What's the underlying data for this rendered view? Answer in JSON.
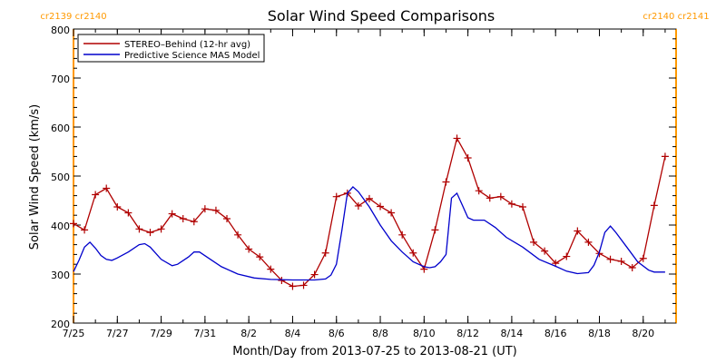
{
  "chart_data": {
    "type": "line",
    "title": "Solar Wind Speed Comparisons",
    "xlabel": "Month/Day from 2013-07-25 to 2013-08-21 (UT)",
    "ylabel": "Solar Wind Speed (km/s)",
    "xlim": [
      "2013-07-25",
      "2013-08-21 12:00"
    ],
    "ylim": [
      200,
      800
    ],
    "xtick_dates": [
      "2013-07-25",
      "2013-07-27",
      "2013-07-29",
      "2013-07-31",
      "2013-08-02",
      "2013-08-04",
      "2013-08-06",
      "2013-08-08",
      "2013-08-10",
      "2013-08-12",
      "2013-08-14",
      "2013-08-16",
      "2013-08-18",
      "2013-08-20"
    ],
    "x_tick_labels": [
      "7/25",
      "7/27",
      "7/29",
      "7/31",
      "8/2",
      "8/4",
      "8/6",
      "8/8",
      "8/10",
      "8/12",
      "8/14",
      "8/16",
      "8/18",
      "8/20"
    ],
    "y_ticks": [
      200,
      300,
      400,
      500,
      600,
      700,
      800
    ],
    "y_tick_labels": [
      "200",
      "300",
      "400",
      "500",
      "600",
      "700",
      "800"
    ],
    "legend_position": "top-left",
    "carrington_markers": [
      {
        "date": "2013-07-25",
        "left_label": "cr2139",
        "right_label": "cr2140",
        "position": "top-left"
      },
      {
        "date": "2013-08-21 12:00",
        "left_label": "cr2140",
        "right_label": "cr2141",
        "position": "top-right"
      }
    ],
    "marker_color": "#ff9900",
    "series": [
      {
        "name": "STEREO–Behind (12-hr avg)",
        "color": "#b00000",
        "marker": "plus",
        "points": [
          [
            "2013-07-25 00:00",
            403
          ],
          [
            "2013-07-25 12:00",
            390
          ],
          [
            "2013-07-26 00:00",
            462
          ],
          [
            "2013-07-26 12:00",
            475
          ],
          [
            "2013-07-27 00:00",
            437
          ],
          [
            "2013-07-27 12:00",
            425
          ],
          [
            "2013-07-28 00:00",
            392
          ],
          [
            "2013-07-28 12:00",
            385
          ],
          [
            "2013-07-29 00:00",
            392
          ],
          [
            "2013-07-29 12:00",
            423
          ],
          [
            "2013-07-30 00:00",
            413
          ],
          [
            "2013-07-30 12:00",
            407
          ],
          [
            "2013-07-31 00:00",
            433
          ],
          [
            "2013-07-31 12:00",
            430
          ],
          [
            "2013-08-01 00:00",
            413
          ],
          [
            "2013-08-01 12:00",
            380
          ],
          [
            "2013-08-02 00:00",
            351
          ],
          [
            "2013-08-02 12:00",
            335
          ],
          [
            "2013-08-03 00:00",
            310
          ],
          [
            "2013-08-03 12:00",
            287
          ],
          [
            "2013-08-04 00:00",
            275
          ],
          [
            "2013-08-04 12:00",
            277
          ],
          [
            "2013-08-05 00:00",
            299
          ],
          [
            "2013-08-05 12:00",
            343
          ],
          [
            "2013-08-06 00:00",
            458
          ],
          [
            "2013-08-06 12:00",
            465
          ],
          [
            "2013-08-07 00:00",
            439
          ],
          [
            "2013-08-07 12:00",
            454
          ],
          [
            "2013-08-08 00:00",
            438
          ],
          [
            "2013-08-08 12:00",
            425
          ],
          [
            "2013-08-09 00:00",
            380
          ],
          [
            "2013-08-09 12:00",
            343
          ],
          [
            "2013-08-10 00:00",
            310
          ],
          [
            "2013-08-10 12:00",
            390
          ],
          [
            "2013-08-11 00:00",
            488
          ],
          [
            "2013-08-11 12:00",
            577
          ],
          [
            "2013-08-12 00:00",
            537
          ],
          [
            "2013-08-12 12:00",
            470
          ],
          [
            "2013-08-13 00:00",
            455
          ],
          [
            "2013-08-13 12:00",
            458
          ],
          [
            "2013-08-14 00:00",
            443
          ],
          [
            "2013-08-14 12:00",
            437
          ],
          [
            "2013-08-15 00:00",
            365
          ],
          [
            "2013-08-15 12:00",
            347
          ],
          [
            "2013-08-16 00:00",
            322
          ],
          [
            "2013-08-16 12:00",
            336
          ],
          [
            "2013-08-17 00:00",
            388
          ],
          [
            "2013-08-17 12:00",
            365
          ],
          [
            "2013-08-18 00:00",
            342
          ],
          [
            "2013-08-18 12:00",
            330
          ],
          [
            "2013-08-19 00:00",
            326
          ],
          [
            "2013-08-19 12:00",
            313
          ],
          [
            "2013-08-20 00:00",
            332
          ],
          [
            "2013-08-20 12:00",
            440
          ],
          [
            "2013-08-21 00:00",
            540
          ]
        ]
      },
      {
        "name": "Predictive Science MAS Model",
        "color": "#0000cc",
        "marker": "none",
        "points": [
          [
            "2013-07-25 00:00",
            305
          ],
          [
            "2013-07-25 06:00",
            328
          ],
          [
            "2013-07-25 12:00",
            355
          ],
          [
            "2013-07-25 18:00",
            365
          ],
          [
            "2013-07-26 00:00",
            353
          ],
          [
            "2013-07-26 06:00",
            338
          ],
          [
            "2013-07-26 12:00",
            330
          ],
          [
            "2013-07-26 18:00",
            328
          ],
          [
            "2013-07-27 00:00",
            333
          ],
          [
            "2013-07-27 12:00",
            345
          ],
          [
            "2013-07-28 00:00",
            360
          ],
          [
            "2013-07-28 06:00",
            362
          ],
          [
            "2013-07-28 12:00",
            355
          ],
          [
            "2013-07-29 00:00",
            330
          ],
          [
            "2013-07-29 12:00",
            317
          ],
          [
            "2013-07-29 18:00",
            320
          ],
          [
            "2013-07-30 06:00",
            335
          ],
          [
            "2013-07-30 12:00",
            345
          ],
          [
            "2013-07-30 18:00",
            345
          ],
          [
            "2013-07-31 06:00",
            330
          ],
          [
            "2013-07-31 18:00",
            315
          ],
          [
            "2013-08-01 12:00",
            300
          ],
          [
            "2013-08-02 06:00",
            292
          ],
          [
            "2013-08-03 00:00",
            289
          ],
          [
            "2013-08-04 00:00",
            288
          ],
          [
            "2013-08-05 00:00",
            288
          ],
          [
            "2013-08-05 12:00",
            290
          ],
          [
            "2013-08-05 18:00",
            298
          ],
          [
            "2013-08-06 00:00",
            320
          ],
          [
            "2013-08-06 06:00",
            390
          ],
          [
            "2013-08-06 12:00",
            465
          ],
          [
            "2013-08-06 18:00",
            478
          ],
          [
            "2013-08-07 00:00",
            468
          ],
          [
            "2013-08-07 12:00",
            437
          ],
          [
            "2013-08-08 00:00",
            400
          ],
          [
            "2013-08-08 12:00",
            368
          ],
          [
            "2013-08-09 00:00",
            345
          ],
          [
            "2013-08-09 12:00",
            325
          ],
          [
            "2013-08-10 00:00",
            315
          ],
          [
            "2013-08-10 06:00",
            313
          ],
          [
            "2013-08-10 12:00",
            315
          ],
          [
            "2013-08-10 18:00",
            325
          ],
          [
            "2013-08-11 00:00",
            340
          ],
          [
            "2013-08-11 06:00",
            455
          ],
          [
            "2013-08-11 12:00",
            465
          ],
          [
            "2013-08-11 18:00",
            440
          ],
          [
            "2013-08-12 00:00",
            415
          ],
          [
            "2013-08-12 06:00",
            410
          ],
          [
            "2013-08-12 18:00",
            410
          ],
          [
            "2013-08-13 06:00",
            395
          ],
          [
            "2013-08-13 18:00",
            375
          ],
          [
            "2013-08-14 12:00",
            355
          ],
          [
            "2013-08-15 06:00",
            330
          ],
          [
            "2013-08-16 00:00",
            316
          ],
          [
            "2013-08-16 12:00",
            306
          ],
          [
            "2013-08-17 00:00",
            301
          ],
          [
            "2013-08-17 12:00",
            303
          ],
          [
            "2013-08-17 18:00",
            318
          ],
          [
            "2013-08-18 00:00",
            345
          ],
          [
            "2013-08-18 06:00",
            385
          ],
          [
            "2013-08-18 12:00",
            398
          ],
          [
            "2013-08-18 18:00",
            385
          ],
          [
            "2013-08-19 06:00",
            355
          ],
          [
            "2013-08-19 18:00",
            325
          ],
          [
            "2013-08-20 06:00",
            308
          ],
          [
            "2013-08-20 12:00",
            304
          ],
          [
            "2013-08-21 00:00",
            304
          ]
        ]
      }
    ]
  }
}
